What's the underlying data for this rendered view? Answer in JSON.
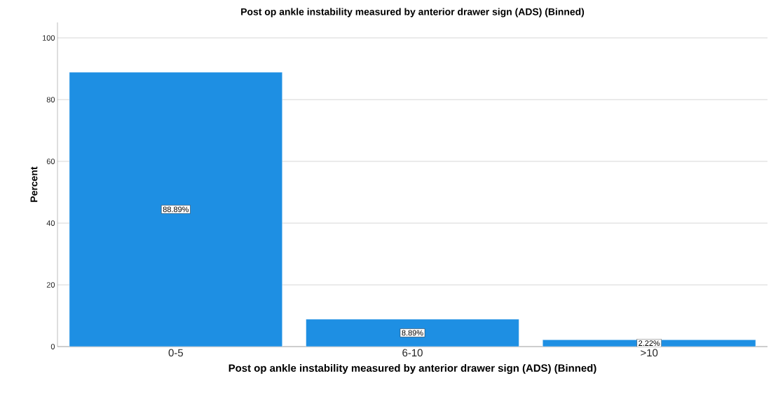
{
  "chart_data": {
    "type": "bar",
    "title": "Post op ankle instability measured by anterior drawer sign (ADS) (Binned)",
    "xlabel": "Post op ankle instability measured by anterior drawer sign (ADS) (Binned)",
    "ylabel": "Percent",
    "categories": [
      "0-5",
      "6-10",
      ">10"
    ],
    "values": [
      88.89,
      8.89,
      2.22
    ],
    "value_labels": [
      "88.89%",
      "8.89%",
      "2.22%"
    ],
    "color": "#1e8fe3",
    "ylim": [
      0,
      105
    ],
    "yticks": [
      0,
      20,
      40,
      60,
      80,
      100
    ],
    "grid": "y"
  }
}
